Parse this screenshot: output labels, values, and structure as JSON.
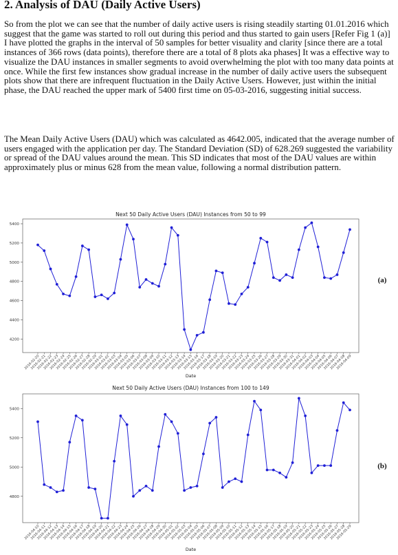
{
  "section": {
    "heading": "2. Analysis of DAU (Daily Active Users)",
    "paragraph1": "So from the plot we can see that the number of daily active users is rising steadily starting 01.01.2016 which suggest that the game was started to roll out during this period and thus started to gain users [Refer Fig 1 (a)] I have plotted the graphs in the interval of 50 samples for better visuality and clarity [since there are a total instances of 366 rows (data points), therefore there are a total of 8 plots aka phases] It was a effective way to visualize the DAU instances in smaller segments to avoid overwhelming the plot with too many data points at once. While the first few instances show gradual increase in the number of daily active users the subsequent plots show that there are infrequent fluctuation in the Daily Active Users. However, just within the initial phase, the DAU reached the upper mark of 5400 first time on 05-03-2016, suggesting initial success.",
    "paragraph2": "The Mean Daily Active Users (DAU) which was calculated as 4642.005, indicated that the average number of users engaged with the application per day. The Standard Deviation (SD) of 628.269 suggested the variability or spread of the DAU values around the mean. This SD indicates that most of the DAU values are within approximately plus or minus 628 from the mean value, following a normal distribution pattern."
  },
  "chart_data": [
    {
      "type": "line",
      "title": "Next 50 Daily Active Users (DAU) Instances from 50 to 99",
      "xlabel": "Date",
      "ylabel": "",
      "panel_label": "(a)",
      "yticks": [
        4200,
        4400,
        4600,
        4800,
        5000,
        5200,
        5400
      ],
      "ylim": [
        4060,
        5450
      ],
      "color": "#1f1fd6",
      "grid": false,
      "categories": [
        "2016-02-20",
        "2016-02-21",
        "2016-02-22",
        "2016-02-23",
        "2016-02-24",
        "2016-02-25",
        "2016-02-26",
        "2016-02-27",
        "2016-02-28",
        "2016-02-29",
        "2016-03-01",
        "2016-03-02",
        "2016-03-03",
        "2016-03-04",
        "2016-03-05",
        "2016-03-06",
        "2016-03-07",
        "2016-03-08",
        "2016-03-09",
        "2016-03-10",
        "2016-03-11",
        "2016-03-12",
        "2016-03-13",
        "2016-03-14",
        "2016-03-15",
        "2016-03-16",
        "2016-03-17",
        "2016-03-18",
        "2016-03-19",
        "2016-03-20",
        "2016-03-21",
        "2016-03-22",
        "2016-03-23",
        "2016-03-24",
        "2016-03-25",
        "2016-03-26",
        "2016-03-27",
        "2016-03-28",
        "2016-03-29",
        "2016-03-30",
        "2016-03-31",
        "2016-04-01",
        "2016-04-02",
        "2016-04-03",
        "2016-04-04",
        "2016-04-05",
        "2016-04-06",
        "2016-04-07",
        "2016-04-08",
        "2016-04-09"
      ],
      "values": [
        5180,
        5120,
        4930,
        4770,
        4670,
        4650,
        4850,
        5170,
        5130,
        4640,
        4660,
        4620,
        4680,
        5030,
        5390,
        5240,
        4740,
        4820,
        4780,
        4750,
        4980,
        5360,
        5280,
        4300,
        4090,
        4240,
        4270,
        4610,
        4910,
        4890,
        4570,
        4560,
        4670,
        4740,
        4990,
        5250,
        5210,
        4840,
        4810,
        4870,
        4840,
        5130,
        5360,
        5410,
        5160,
        4840,
        4830,
        4870,
        5100,
        5340
      ]
    },
    {
      "type": "line",
      "title": "Next 50 Daily Active Users (DAU) Instances from 100 to 149",
      "xlabel": "Date",
      "ylabel": "",
      "panel_label": "(b)",
      "yticks": [
        4800,
        5000,
        5200,
        5400
      ],
      "ylim": [
        4620,
        5500
      ],
      "color": "#1f1fd6",
      "grid": false,
      "categories": [
        "2016-04-10",
        "2016-04-11",
        "2016-04-12",
        "2016-04-13",
        "2016-04-14",
        "2016-04-15",
        "2016-04-16",
        "2016-04-17",
        "2016-04-18",
        "2016-04-19",
        "2016-04-20",
        "2016-04-21",
        "2016-04-22",
        "2016-04-23",
        "2016-04-24",
        "2016-04-25",
        "2016-04-26",
        "2016-04-27",
        "2016-04-28",
        "2016-04-29",
        "2016-04-30",
        "2016-05-01",
        "2016-05-02",
        "2016-05-03",
        "2016-05-04",
        "2016-05-05",
        "2016-05-06",
        "2016-05-07",
        "2016-05-08",
        "2016-05-09",
        "2016-05-10",
        "2016-05-11",
        "2016-05-12",
        "2016-05-13",
        "2016-05-14",
        "2016-05-15",
        "2016-05-16",
        "2016-05-17",
        "2016-05-18",
        "2016-05-19",
        "2016-05-20",
        "2016-05-21",
        "2016-05-22",
        "2016-05-23",
        "2016-05-24",
        "2016-05-25",
        "2016-05-26",
        "2016-05-27",
        "2016-05-28",
        "2016-05-29"
      ],
      "values": [
        5310,
        4880,
        4860,
        4830,
        4840,
        5170,
        5350,
        5320,
        4860,
        4850,
        4650,
        4650,
        5040,
        5350,
        5290,
        4800,
        4840,
        4870,
        4840,
        5140,
        5360,
        5310,
        5230,
        4840,
        4860,
        4870,
        5090,
        5300,
        5340,
        4860,
        4900,
        4920,
        4900,
        5220,
        5450,
        5390,
        4980,
        4980,
        4960,
        4930,
        5030,
        5470,
        5350,
        4960,
        5010,
        5010,
        5010,
        5250,
        5440,
        5390
      ]
    }
  ]
}
